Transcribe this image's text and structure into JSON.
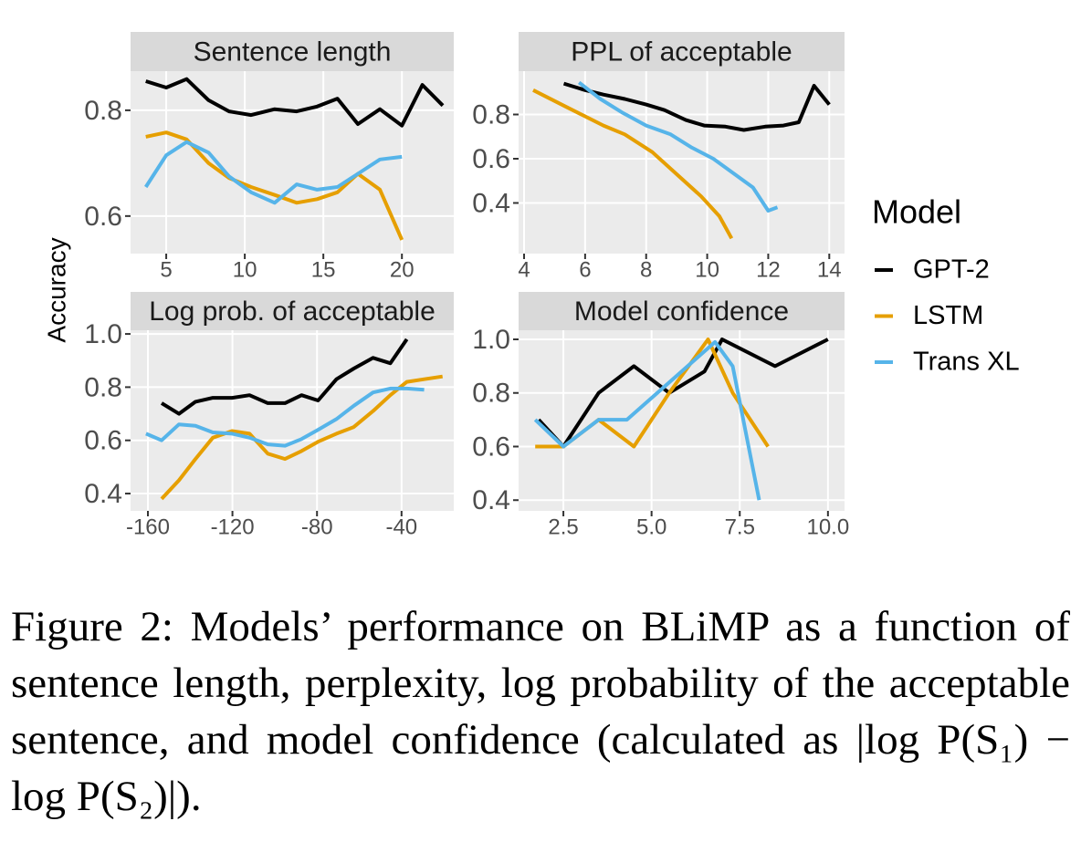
{
  "chart_data": [
    {
      "type": "line",
      "title": "Sentence length",
      "xlim": [
        2.73,
        23.3
      ],
      "ylim": [
        0.529,
        0.874
      ],
      "xticks": [
        5,
        10,
        15,
        20
      ],
      "yticks": [
        0.6,
        0.8
      ],
      "grid": true,
      "series": [
        {
          "name": "GPT-2",
          "color": "#000000",
          "x": [
            3.7,
            5,
            6.3,
            7.7,
            9,
            10.4,
            11.9,
            13.3,
            14.6,
            15.9,
            17.2,
            18.6,
            20,
            21.3,
            22.6
          ],
          "values": [
            0.855,
            0.843,
            0.859,
            0.819,
            0.798,
            0.791,
            0.802,
            0.798,
            0.807,
            0.822,
            0.774,
            0.802,
            0.771,
            0.848,
            0.809
          ]
        },
        {
          "name": "LSTM",
          "color": "#e69f00",
          "x": [
            3.7,
            5,
            6.3,
            7.7,
            9,
            10.4,
            11.9,
            13.3,
            14.6,
            15.9,
            17.2,
            18.6,
            20
          ],
          "values": [
            0.75,
            0.758,
            0.745,
            0.7,
            0.672,
            0.655,
            0.64,
            0.625,
            0.632,
            0.645,
            0.68,
            0.65,
            0.555
          ]
        },
        {
          "name": "Trans XL",
          "color": "#56b4e9",
          "x": [
            3.7,
            5,
            6.3,
            7.7,
            9,
            10.4,
            11.9,
            13.3,
            14.6,
            15.9,
            17.2,
            18.6,
            20
          ],
          "values": [
            0.655,
            0.715,
            0.74,
            0.72,
            0.675,
            0.645,
            0.625,
            0.66,
            0.65,
            0.655,
            0.68,
            0.707,
            0.712
          ]
        }
      ]
    },
    {
      "type": "line",
      "title": "PPL of acceptable",
      "xlim": [
        3.82,
        14.5
      ],
      "ylim": [
        0.171,
        0.996
      ],
      "xticks": [
        4,
        6,
        8,
        10,
        12,
        14
      ],
      "yticks": [
        0.4,
        0.6,
        0.8
      ],
      "grid": true,
      "series": [
        {
          "name": "GPT-2",
          "color": "#000000",
          "x": [
            5.3,
            6,
            6.6,
            7.3,
            8,
            8.6,
            9.3,
            9.9,
            10.6,
            11.2,
            11.9,
            12.5,
            13,
            13.5,
            14
          ],
          "values": [
            0.94,
            0.91,
            0.89,
            0.87,
            0.845,
            0.82,
            0.775,
            0.75,
            0.745,
            0.73,
            0.745,
            0.75,
            0.765,
            0.93,
            0.845
          ]
        },
        {
          "name": "LSTM",
          "color": "#e69f00",
          "x": [
            4.3,
            5.3,
            6.6,
            7.3,
            8.2,
            9,
            9.8,
            10.4,
            10.8
          ],
          "values": [
            0.91,
            0.84,
            0.75,
            0.71,
            0.63,
            0.53,
            0.43,
            0.34,
            0.24
          ]
        },
        {
          "name": "Trans XL",
          "color": "#56b4e9",
          "x": [
            5.8,
            6.5,
            7.2,
            8,
            8.8,
            9.5,
            10.2,
            10.8,
            11.5,
            12,
            12.3
          ],
          "values": [
            0.945,
            0.87,
            0.81,
            0.75,
            0.71,
            0.65,
            0.6,
            0.54,
            0.47,
            0.365,
            0.38
          ]
        }
      ]
    },
    {
      "type": "line",
      "title": "Log prob. of acceptable",
      "xlim": [
        -168.2,
        -15.3
      ],
      "ylim": [
        0.335,
        1.014
      ],
      "xticks": [
        -160,
        -120,
        -80,
        -40
      ],
      "yticks": [
        0.4,
        0.6,
        0.8,
        {
          "value": 1,
          "label": "1.0"
        }
      ],
      "grid": true,
      "series": [
        {
          "name": "GPT-2",
          "color": "#000000",
          "x": [
            -153.5,
            -145.3,
            -137.5,
            -129.3,
            -120.2,
            -111.9,
            -103.3,
            -95.1,
            -87.3,
            -79.5,
            -70.8,
            -62.6,
            -53.5,
            -45.3,
            -37.5
          ],
          "values": [
            0.74,
            0.7,
            0.745,
            0.76,
            0.76,
            0.77,
            0.74,
            0.74,
            0.77,
            0.75,
            0.83,
            0.87,
            0.91,
            0.89,
            0.98
          ]
        },
        {
          "name": "LSTM",
          "color": "#e69f00",
          "x": [
            -153.5,
            -145.3,
            -137.5,
            -129.3,
            -120.2,
            -111.9,
            -103.3,
            -95.1,
            -87.3,
            -79.5,
            -70.8,
            -62.6,
            -53.5,
            -45.3,
            -37.5,
            -29.3,
            -20.6
          ],
          "values": [
            0.38,
            0.45,
            0.53,
            0.61,
            0.635,
            0.625,
            0.55,
            0.53,
            0.56,
            0.595,
            0.625,
            0.65,
            0.71,
            0.77,
            0.82,
            0.83,
            0.84
          ]
        },
        {
          "name": "Trans XL",
          "color": "#56b4e9",
          "x": [
            -160.9,
            -153.5,
            -145.3,
            -137.5,
            -129.3,
            -120.2,
            -111.9,
            -103.3,
            -95.1,
            -87.3,
            -79.5,
            -70.8,
            -62.6,
            -53.5,
            -45.3,
            -37.5,
            -29.3
          ],
          "values": [
            0.625,
            0.6,
            0.66,
            0.655,
            0.63,
            0.625,
            0.61,
            0.585,
            0.58,
            0.605,
            0.64,
            0.68,
            0.73,
            0.78,
            0.795,
            0.795,
            0.79
          ]
        }
      ]
    },
    {
      "type": "line",
      "title": "Model confidence",
      "xlim": [
        1.23,
        10.47
      ],
      "ylim": [
        0.36,
        1.034
      ],
      "xticks": [
        2.5,
        {
          "value": 5,
          "label": "5.0"
        },
        7.5,
        {
          "value": 10,
          "label": "10.0"
        }
      ],
      "yticks": [
        0.4,
        0.6,
        0.8,
        {
          "value": 1,
          "label": "1.0"
        }
      ],
      "grid": true,
      "series": [
        {
          "name": "GPT-2",
          "color": "#000000",
          "x": [
            1.8,
            2.5,
            3.5,
            4.5,
            5.5,
            6.5,
            7,
            8.5,
            10
          ],
          "values": [
            0.7,
            0.6,
            0.8,
            0.9,
            0.8,
            0.88,
            1.0,
            0.9,
            1.0
          ]
        },
        {
          "name": "LSTM",
          "color": "#e69f00",
          "x": [
            1.7,
            2.5,
            3.5,
            4.5,
            5.5,
            6.6,
            7.3,
            8.3
          ],
          "values": [
            0.6,
            0.6,
            0.7,
            0.6,
            0.8,
            1.0,
            0.8,
            0.6
          ]
        },
        {
          "name": "Trans XL",
          "color": "#56b4e9",
          "x": [
            1.7,
            2.5,
            3.5,
            4.3,
            6.8,
            7.3,
            8.05
          ],
          "values": [
            0.7,
            0.6,
            0.7,
            0.7,
            0.99,
            0.9,
            0.4
          ]
        }
      ]
    }
  ],
  "y_label": "Accuracy",
  "legend": {
    "title": "Model"
  },
  "caption": "Figure 2: Models’ performance on BLiMP as a function of sentence length, perplexity, log probability of the acceptable sentence, and model confidence (calculated as |log P(S₁) − log P(S₂)|)."
}
